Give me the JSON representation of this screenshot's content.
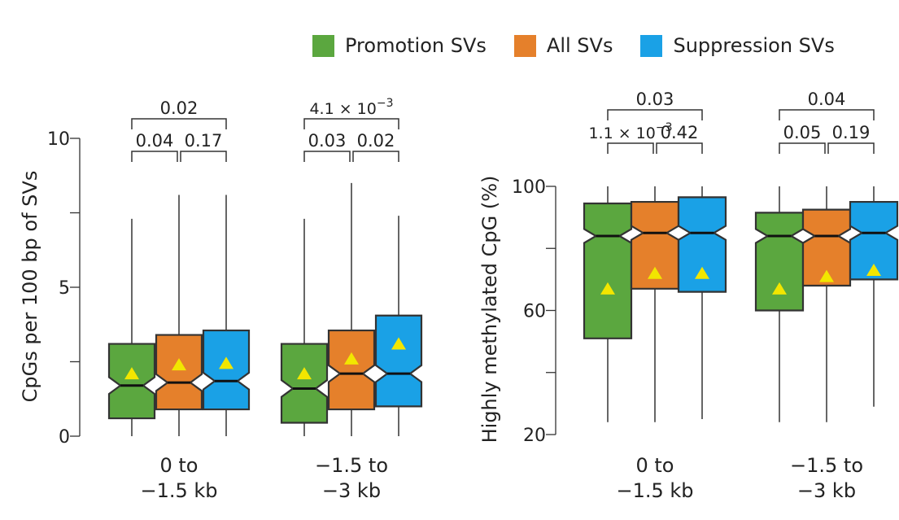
{
  "legend": [
    {
      "label": "Promotion SVs",
      "color": "#5ba73f"
    },
    {
      "label": "All SVs",
      "color": "#e5802b"
    },
    {
      "label": "Suppression SVs",
      "color": "#1aa1e6"
    }
  ],
  "chart_data": [
    {
      "type": "boxplot",
      "ylabel": "CpGs per 100 bp of SVs",
      "ylim": [
        0,
        10
      ],
      "yticks": [
        "0",
        "5",
        "10"
      ],
      "categories": [
        "0 to\n−1.5 kb",
        "−1.5 to\n−3 kb"
      ],
      "groups": [
        {
          "category": "0 to\n−1.5 kb",
          "boxes": [
            {
              "series": "Promotion SVs",
              "whisker_low": 0,
              "q1": 0.6,
              "median": 1.7,
              "q3": 3.1,
              "whisker_high": 7.3,
              "mean": 2.1
            },
            {
              "series": "All SVs",
              "whisker_low": 0,
              "q1": 0.9,
              "median": 1.8,
              "q3": 3.4,
              "whisker_high": 8.1,
              "mean": 2.4
            },
            {
              "series": "Suppression SVs",
              "whisker_low": 0,
              "q1": 0.9,
              "median": 1.85,
              "q3": 3.55,
              "whisker_high": 8.1,
              "mean": 2.45
            }
          ],
          "pvalues": [
            {
              "text": "0.04",
              "from": 0,
              "to": 1
            },
            {
              "text": "0.17",
              "from": 1,
              "to": 2
            },
            {
              "text": "0.02",
              "from": 0,
              "to": 2
            }
          ]
        },
        {
          "category": "−1.5 to\n−3 kb",
          "boxes": [
            {
              "series": "Promotion SVs",
              "whisker_low": 0,
              "q1": 0.45,
              "median": 1.6,
              "q3": 3.1,
              "whisker_high": 7.3,
              "mean": 2.1
            },
            {
              "series": "All SVs",
              "whisker_low": 0,
              "q1": 0.9,
              "median": 2.1,
              "q3": 3.55,
              "whisker_high": 8.5,
              "mean": 2.6
            },
            {
              "series": "Suppression SVs",
              "whisker_low": 0,
              "q1": 1.0,
              "median": 2.1,
              "q3": 4.05,
              "whisker_high": 7.4,
              "mean": 3.1
            }
          ],
          "pvalues": [
            {
              "text": "0.03",
              "from": 0,
              "to": 1
            },
            {
              "text": "0.02",
              "from": 1,
              "to": 2
            },
            {
              "text": "4.1 × 10",
              "sup": "−3",
              "from": 0,
              "to": 2
            }
          ]
        }
      ]
    },
    {
      "type": "boxplot",
      "ylabel": "Highly methylated CpG (%)",
      "ylim": [
        20,
        100
      ],
      "yticks": [
        "20",
        "60",
        "100"
      ],
      "categories": [
        "0 to\n−1.5 kb",
        "−1.5 to\n−3 kb"
      ],
      "groups": [
        {
          "category": "0 to\n−1.5 kb",
          "boxes": [
            {
              "series": "Promotion SVs",
              "whisker_low": 24,
              "q1": 51,
              "median": 84,
              "q3": 94.5,
              "whisker_high": 100,
              "mean": 67
            },
            {
              "series": "All SVs",
              "whisker_low": 24,
              "q1": 67,
              "median": 85,
              "q3": 95,
              "whisker_high": 100,
              "mean": 72
            },
            {
              "series": "Suppression SVs",
              "whisker_low": 25,
              "q1": 66,
              "median": 85,
              "q3": 96.5,
              "whisker_high": 100,
              "mean": 72
            }
          ],
          "pvalues": [
            {
              "text": "1.1 × 10",
              "sup": "−3",
              "from": 0,
              "to": 1
            },
            {
              "text": "0.42",
              "from": 1,
              "to": 2
            },
            {
              "text": "0.03",
              "from": 0,
              "to": 2
            }
          ]
        },
        {
          "category": "−1.5 to\n−3 kb",
          "boxes": [
            {
              "series": "Promotion SVs",
              "whisker_low": 24,
              "q1": 60,
              "median": 84,
              "q3": 91.5,
              "whisker_high": 100,
              "mean": 67
            },
            {
              "series": "All SVs",
              "whisker_low": 24,
              "q1": 68,
              "median": 84,
              "q3": 92.5,
              "whisker_high": 100,
              "mean": 71
            },
            {
              "series": "Suppression SVs",
              "whisker_low": 29,
              "q1": 70,
              "median": 85,
              "q3": 95,
              "whisker_high": 100,
              "mean": 73
            }
          ],
          "pvalues": [
            {
              "text": "0.05",
              "from": 0,
              "to": 1
            },
            {
              "text": "0.19",
              "from": 1,
              "to": 2
            },
            {
              "text": "0.04",
              "from": 0,
              "to": 2
            }
          ]
        }
      ]
    }
  ]
}
